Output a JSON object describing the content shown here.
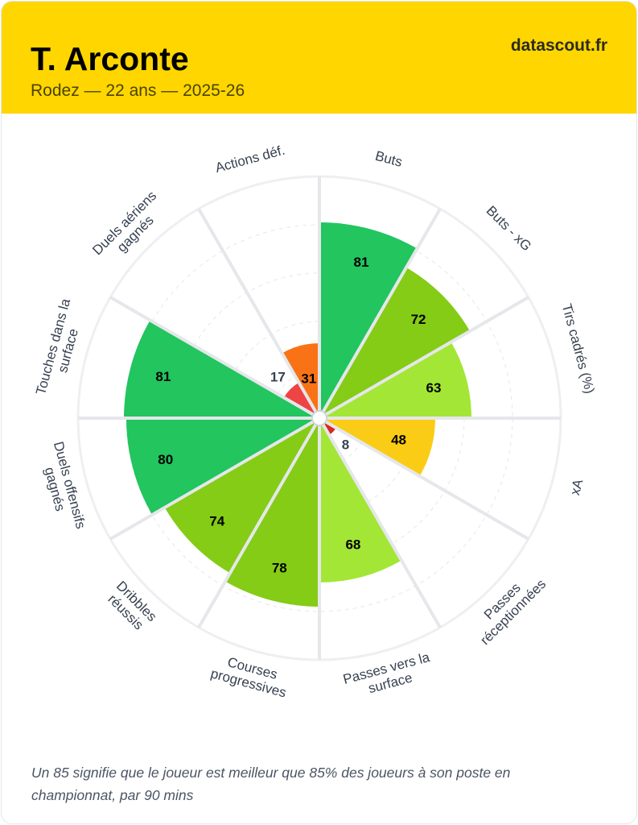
{
  "header": {
    "title": "T. Arconte",
    "subtitle": "Rodez — 22 ans — 2025-26",
    "brand": "datascout.fr"
  },
  "chart_data": {
    "type": "pizza",
    "range": [
      0,
      100
    ],
    "segments": [
      {
        "label": [
          "Buts"
        ],
        "value": 81,
        "color": "#22c55e"
      },
      {
        "label": [
          "Buts - xG"
        ],
        "value": 72,
        "color": "#84cc16"
      },
      {
        "label": [
          "Tirs cadrés (%)"
        ],
        "value": 63,
        "color": "#a3e635"
      },
      {
        "label": [
          "xA"
        ],
        "value": 48,
        "color": "#facc15"
      },
      {
        "label": [
          "Passes",
          "réceptionnées"
        ],
        "value": 8,
        "color": "#dc2626"
      },
      {
        "label": [
          "Passes vers la",
          "surface"
        ],
        "value": 68,
        "color": "#a3e635"
      },
      {
        "label": [
          "Courses",
          "progressives"
        ],
        "value": 78,
        "color": "#84cc16"
      },
      {
        "label": [
          "Dribbles",
          "réussis"
        ],
        "value": 74,
        "color": "#84cc16"
      },
      {
        "label": [
          "Duels offensifs",
          "gagnés"
        ],
        "value": 80,
        "color": "#22c55e"
      },
      {
        "label": [
          "Touches dans la",
          "surface"
        ],
        "value": 81,
        "color": "#22c55e"
      },
      {
        "label": [
          "Duels aériens",
          "gagnés"
        ],
        "value": 17,
        "color": "#ef4444"
      },
      {
        "label": [
          "Actions déf."
        ],
        "value": 31,
        "color": "#f97316"
      }
    ]
  },
  "footer": "Un 85 signifie que le joueur est meilleur que 85% des joueurs à son poste en championnat, par 90 mins"
}
